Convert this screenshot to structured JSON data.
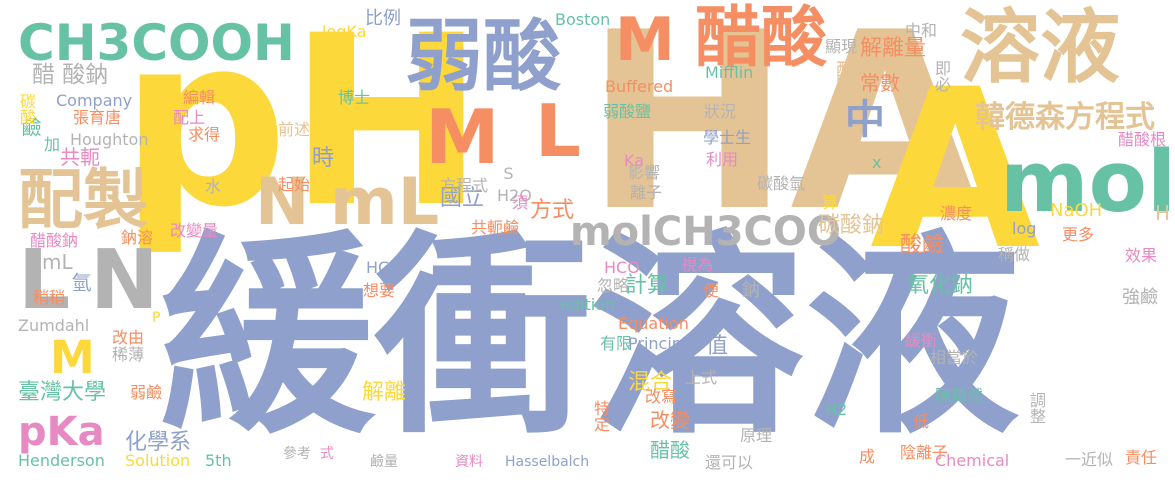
{
  "palette": {
    "yellow": "#FDD83B",
    "blue": "#8EA0CB",
    "tan": "#E4C495",
    "orange": "#F58E62",
    "teal": "#67C2A5",
    "pink": "#E78AC3",
    "green": "#A6D953",
    "gray": "#B3B3B3"
  },
  "words": [
    {
      "text": "緩衝溶液",
      "color": "blue"
    },
    {
      "text": "pH",
      "color": "yellow"
    },
    {
      "text": "HA",
      "color": "tan"
    },
    {
      "text": "A",
      "color": "yellow"
    },
    {
      "text": "溶液",
      "color": "tan"
    },
    {
      "text": "弱酸",
      "color": "blue"
    },
    {
      "text": "醋酸",
      "color": "orange"
    },
    {
      "text": "M",
      "color": "orange"
    },
    {
      "text": "mol",
      "color": "teal"
    },
    {
      "text": "CH3COOH",
      "color": "teal"
    },
    {
      "text": "M",
      "color": "orange"
    },
    {
      "text": "L",
      "color": "orange"
    },
    {
      "text": "N",
      "color": "tan"
    },
    {
      "text": "mL",
      "color": "tan"
    },
    {
      "text": "配製",
      "color": "tan"
    },
    {
      "text": "L",
      "color": "gray"
    },
    {
      "text": "N",
      "color": "gray"
    },
    {
      "text": "中",
      "color": "blue"
    },
    {
      "text": "molCH3COO",
      "color": "gray"
    },
    {
      "text": "韓德森",
      "color": "tan"
    },
    {
      "text": "方程式",
      "color": "tan"
    },
    {
      "text": "pKa",
      "color": "pink"
    },
    {
      "text": "M",
      "color": "yellow"
    },
    {
      "text": "醋 酸鈉",
      "color": "gray"
    },
    {
      "text": "解離量",
      "color": "orange"
    },
    {
      "text": "酸",
      "color": "tan"
    },
    {
      "text": "常數",
      "color": "orange"
    },
    {
      "text": "比例",
      "color": "blue"
    },
    {
      "text": "時",
      "color": "blue"
    },
    {
      "text": "國立",
      "color": "blue"
    },
    {
      "text": "方式",
      "color": "orange"
    },
    {
      "text": "碳酸鈉",
      "color": "tan"
    },
    {
      "text": "酸鹼",
      "color": "orange"
    },
    {
      "text": "氧化鈉",
      "color": "teal"
    },
    {
      "text": "NaOH",
      "color": "yellow"
    },
    {
      "text": "H",
      "color": "tan"
    },
    {
      "text": "計算",
      "color": "teal"
    },
    {
      "text": "值",
      "color": "blue"
    },
    {
      "text": "混合",
      "color": "yellow"
    },
    {
      "text": "改變",
      "color": "orange"
    },
    {
      "text": "醋酸",
      "color": "teal"
    },
    {
      "text": "解離",
      "color": "yellow"
    },
    {
      "text": "臺灣大學",
      "color": "teal"
    },
    {
      "text": "化學系",
      "color": "blue"
    },
    {
      "text": "Henderson",
      "color": "teal"
    },
    {
      "text": "Solution",
      "color": "yellow"
    },
    {
      "text": "5th",
      "color": "teal"
    },
    {
      "text": "mL",
      "color": "gray"
    },
    {
      "text": "氫",
      "color": "blue"
    },
    {
      "text": "共軛",
      "color": "pink"
    },
    {
      "text": "鹼",
      "color": "teal"
    },
    {
      "text": "張育唐",
      "color": "orange"
    },
    {
      "text": "Houghton",
      "color": "gray"
    },
    {
      "text": "Company",
      "color": "blue"
    },
    {
      "text": "碳酸",
      "color": "yellow"
    },
    {
      "text": "加",
      "color": "teal"
    },
    {
      "text": "編輯",
      "color": "orange"
    },
    {
      "text": "配上",
      "color": "pink"
    },
    {
      "text": "求得",
      "color": "orange"
    },
    {
      "text": "博士",
      "color": "teal"
    },
    {
      "text": "logKa",
      "color": "yellow"
    },
    {
      "text": "前述",
      "color": "tan"
    },
    {
      "text": "起始",
      "color": "orange"
    },
    {
      "text": "水",
      "color": "gray"
    },
    {
      "text": "Boston",
      "color": "teal"
    },
    {
      "text": "Buffered",
      "color": "orange"
    },
    {
      "text": "Mifflin",
      "color": "teal"
    },
    {
      "text": "弱酸鹽",
      "color": "teal"
    },
    {
      "text": "狀況",
      "color": "gray"
    },
    {
      "text": "學士生",
      "color": "blue"
    },
    {
      "text": "利用",
      "color": "pink"
    },
    {
      "text": "Ka",
      "color": "pink"
    },
    {
      "text": "影響",
      "color": "gray"
    },
    {
      "text": "離子",
      "color": "gray"
    },
    {
      "text": "碳酸氫",
      "color": "gray"
    },
    {
      "text": "x",
      "color": "teal"
    },
    {
      "text": "S",
      "color": "gray"
    },
    {
      "text": "H2O",
      "color": "gray"
    },
    {
      "text": "方程式",
      "color": "gray"
    },
    {
      "text": "須",
      "color": "pink"
    },
    {
      "text": "共軛鹼",
      "color": "orange"
    },
    {
      "text": "中和",
      "color": "gray"
    },
    {
      "text": "顯現",
      "color": "gray"
    },
    {
      "text": "即必",
      "color": "gray"
    },
    {
      "text": "醋酸根",
      "color": "pink"
    },
    {
      "text": "濃度",
      "color": "orange"
    },
    {
      "text": "log",
      "color": "blue"
    },
    {
      "text": "更多",
      "color": "orange"
    },
    {
      "text": "算",
      "color": "yellow"
    },
    {
      "text": "稱做",
      "color": "gray"
    },
    {
      "text": "效果",
      "color": "pink"
    },
    {
      "text": "強鹼",
      "color": "gray"
    },
    {
      "text": "醋酸鈉",
      "color": "pink"
    },
    {
      "text": "鈉溶",
      "color": "orange"
    },
    {
      "text": "改變量",
      "color": "pink"
    },
    {
      "text": "稍稍",
      "color": "orange"
    },
    {
      "text": "HCl",
      "color": "blue"
    },
    {
      "text": "想要",
      "color": "orange"
    },
    {
      "text": "HCO",
      "color": "pink"
    },
    {
      "text": "忽略",
      "color": "gray"
    },
    {
      "text": "便",
      "color": "orange"
    },
    {
      "text": "視為",
      "color": "pink"
    },
    {
      "text": "鈉",
      "color": "gray"
    },
    {
      "text": "edition",
      "color": "teal"
    },
    {
      "text": "Equation",
      "color": "orange"
    },
    {
      "text": "Principles",
      "color": "blue"
    },
    {
      "text": "有限",
      "color": "teal"
    },
    {
      "text": "P",
      "color": "yellow"
    },
    {
      "text": "Zumdahl",
      "color": "gray"
    },
    {
      "text": "改由",
      "color": "orange"
    },
    {
      "text": "稀薄",
      "color": "gray"
    },
    {
      "text": "弱鹼",
      "color": "orange"
    },
    {
      "text": "上式",
      "color": "gray"
    },
    {
      "text": "改寫",
      "color": "orange"
    },
    {
      "text": "特定",
      "color": "orange"
    },
    {
      "text": "緩衝",
      "color": "pink"
    },
    {
      "text": "相當於",
      "color": "gray"
    },
    {
      "text": "陳藹然",
      "color": "teal"
    },
    {
      "text": "調整",
      "color": "gray"
    },
    {
      "text": "低",
      "color": "orange"
    },
    {
      "text": "原理",
      "color": "gray"
    },
    {
      "text": "H2",
      "color": "teal"
    },
    {
      "text": "陰離子",
      "color": "orange"
    },
    {
      "text": "Chemical",
      "color": "pink"
    },
    {
      "text": "成",
      "color": "orange"
    },
    {
      "text": "還可以",
      "color": "gray"
    },
    {
      "text": "一近似",
      "color": "gray"
    },
    {
      "text": "責任",
      "color": "orange"
    },
    {
      "text": "參考",
      "color": "gray"
    },
    {
      "text": "式",
      "color": "pink"
    },
    {
      "text": "鹼量",
      "color": "gray"
    },
    {
      "text": "資料",
      "color": "pink"
    },
    {
      "text": "Hasselbalch",
      "color": "blue"
    }
  ]
}
